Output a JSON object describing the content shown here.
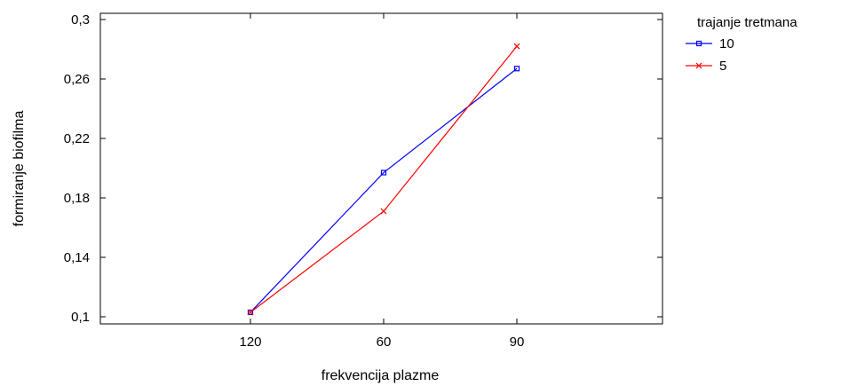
{
  "chart_data": {
    "type": "line",
    "categories": [
      "120",
      "60",
      "90"
    ],
    "series": [
      {
        "name": "10",
        "values": [
          0.103,
          0.197,
          0.267
        ],
        "color": "#0000ff",
        "marker": "square"
      },
      {
        "name": "5",
        "values": [
          0.103,
          0.171,
          0.282
        ],
        "color": "#ff0000",
        "marker": "x"
      }
    ],
    "xlabel": "frekvencija plazme",
    "ylabel": "formiranje biofilma",
    "ylim": [
      0.1,
      0.3
    ],
    "yticks": [
      "0,1",
      "0,14",
      "0,18",
      "0,22",
      "0,26",
      "0,3"
    ],
    "legend": {
      "title": "trajanje tretmana",
      "placement": "right"
    },
    "grid": false
  }
}
